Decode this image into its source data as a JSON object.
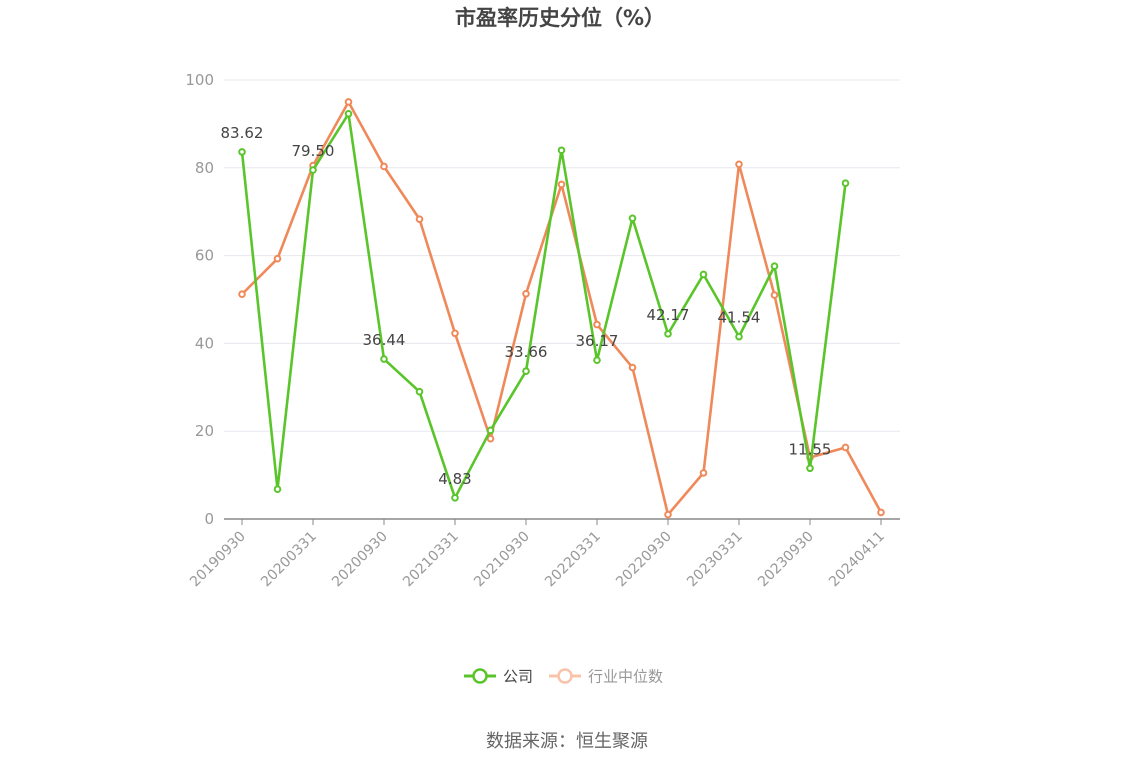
{
  "chart_data": {
    "type": "line",
    "title": "市盈率历史分位（%）",
    "source": "数据来源：恒生聚源",
    "ylim": [
      0,
      100
    ],
    "y_ticks": [
      0,
      20,
      40,
      60,
      80,
      100
    ],
    "x": [
      "20190930",
      "20191231",
      "20200331",
      "20200630",
      "20200930",
      "20201231",
      "20210331",
      "20210630",
      "20210930",
      "20211231",
      "20220331",
      "20220630",
      "20220930",
      "20221231",
      "20230331",
      "20230630",
      "20230930",
      "20231231",
      "20240411"
    ],
    "x_tick_labels": [
      "20190930",
      "20200331",
      "20200930",
      "20210331",
      "20210930",
      "20220331",
      "20220930",
      "20230331",
      "20230930",
      "20240411"
    ],
    "grid": true,
    "legend_position": "bottom",
    "series": [
      {
        "name": "公司",
        "color": "#5ac52b",
        "values": [
          83.62,
          6.8,
          79.5,
          92.3,
          36.44,
          29.0,
          4.83,
          20.2,
          33.66,
          84.0,
          36.17,
          68.5,
          42.17,
          55.7,
          41.54,
          57.6,
          11.55,
          76.5,
          null
        ],
        "labels": [
          "83.62",
          null,
          "79.50",
          null,
          "36.44",
          null,
          "4.83",
          null,
          "33.66",
          null,
          "36.17",
          null,
          "42.17",
          null,
          "41.54",
          null,
          "11.55",
          null,
          null
        ]
      },
      {
        "name": "行业中位数",
        "color": "#f0895a",
        "values": [
          51.2,
          59.3,
          80.5,
          95.0,
          80.3,
          68.3,
          42.3,
          18.3,
          51.3,
          76.2,
          44.3,
          34.5,
          1.0,
          10.5,
          80.8,
          51.0,
          14.0,
          16.3,
          1.5
        ],
        "labels": []
      }
    ]
  }
}
